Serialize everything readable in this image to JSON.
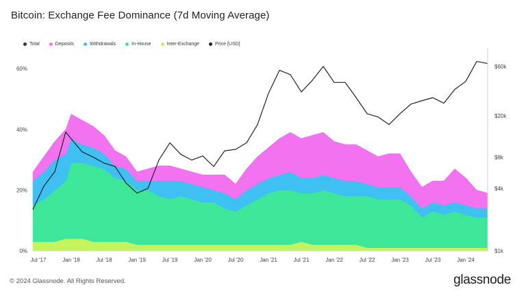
{
  "header": {
    "title": "Bitcoin: Exchange Fee Dominance (7d Moving Average)"
  },
  "footer": {
    "copyright": "© 2024 Glassnode. All Rights Reserved.",
    "logo": "glassnode"
  },
  "colors": {
    "total": "#333333",
    "deposits": "#f272f0",
    "withdrawals": "#3fc0f2",
    "in_house": "#3ee69a",
    "inter_exchange": "#c4f55e",
    "price": "#222222"
  },
  "chart_data": {
    "type": "area",
    "title": "Bitcoin: Exchange Fee Dominance (7d Moving Average)",
    "legend": [
      "Total",
      "Deposits",
      "Withdrawals",
      "In-House",
      "Inter-Exchange",
      "Price [USD]"
    ],
    "legend_placement": "top-left",
    "x_ticks": [
      "Jul '17",
      "Jan '18",
      "Jul '18",
      "Jan '19",
      "Jul '19",
      "Jan '20",
      "Jul '20",
      "Jan '21",
      "Jul '21",
      "Jan '22",
      "Jul '22",
      "Jan '23",
      "Jul '23",
      "Jan '24"
    ],
    "y_left_ticks": [
      "0%",
      "20%",
      "40%",
      "60%"
    ],
    "y_left_range": [
      0,
      65
    ],
    "y_right_ticks": [
      "$1k",
      "$4k",
      "$8k",
      "$20k",
      "$60k"
    ],
    "y_right_scale": "log",
    "grid": false,
    "x": [
      "2017-06",
      "2017-08",
      "2017-10",
      "2017-12",
      "2018-01",
      "2018-03",
      "2018-05",
      "2018-07",
      "2018-09",
      "2018-11",
      "2019-01",
      "2019-03",
      "2019-05",
      "2019-07",
      "2019-09",
      "2019-11",
      "2020-01",
      "2020-03",
      "2020-05",
      "2020-07",
      "2020-09",
      "2020-11",
      "2021-01",
      "2021-03",
      "2021-05",
      "2021-07",
      "2021-09",
      "2021-11",
      "2022-01",
      "2022-03",
      "2022-05",
      "2022-07",
      "2022-09",
      "2022-11",
      "2023-01",
      "2023-03",
      "2023-05",
      "2023-07",
      "2023-09",
      "2023-11",
      "2024-01",
      "2024-03",
      "2024-05"
    ],
    "series": [
      {
        "name": "Inter-Exchange",
        "values": [
          3,
          3,
          3,
          4,
          4,
          4,
          3,
          3,
          3,
          3,
          2,
          2,
          2,
          2,
          2,
          2,
          2,
          2,
          2,
          2,
          2,
          2,
          2,
          2,
          2,
          3,
          2,
          2,
          2,
          2,
          2,
          1,
          1,
          1,
          1,
          1,
          1,
          1,
          1,
          1,
          1,
          1,
          1
        ]
      },
      {
        "name": "In-House",
        "values": [
          12,
          14,
          17,
          19,
          25,
          25,
          25,
          24,
          21,
          20,
          18,
          18,
          16,
          15,
          16,
          15,
          14,
          14,
          12,
          11,
          13,
          15,
          17,
          18,
          18,
          16,
          17,
          18,
          17,
          16,
          16,
          17,
          16,
          16,
          16,
          14,
          10,
          12,
          11,
          12,
          11,
          10,
          10
        ]
      },
      {
        "name": "Withdrawals",
        "values": [
          8,
          9,
          10,
          9,
          8,
          6,
          6,
          5,
          4,
          4,
          3,
          3,
          5,
          6,
          5,
          5,
          5,
          4,
          5,
          4,
          5,
          5,
          5,
          5,
          6,
          5,
          5,
          5,
          5,
          5,
          5,
          4,
          4,
          4,
          4,
          3,
          3,
          3,
          3,
          3,
          3,
          3,
          3
        ]
      },
      {
        "name": "Deposits",
        "values": [
          3,
          5,
          6,
          8,
          8,
          8,
          7,
          6,
          5,
          4,
          3,
          4,
          5,
          5,
          4,
          4,
          4,
          5,
          6,
          5,
          7,
          9,
          10,
          12,
          13,
          13,
          14,
          14,
          12,
          12,
          12,
          11,
          10,
          11,
          11,
          8,
          7,
          7,
          8,
          11,
          9,
          6,
          5
        ]
      }
    ],
    "price_usd": [
      2500,
      4200,
      5800,
      14000,
      12000,
      9000,
      8000,
      7000,
      6500,
      4500,
      3600,
      4000,
      7500,
      11000,
      8500,
      7500,
      8200,
      6500,
      9200,
      9500,
      11000,
      16500,
      33000,
      55000,
      50000,
      34000,
      44000,
      60000,
      42000,
      42000,
      30000,
      21000,
      19500,
      16500,
      21000,
      26000,
      28000,
      30000,
      26500,
      36000,
      43000,
      67000,
      64000
    ]
  }
}
